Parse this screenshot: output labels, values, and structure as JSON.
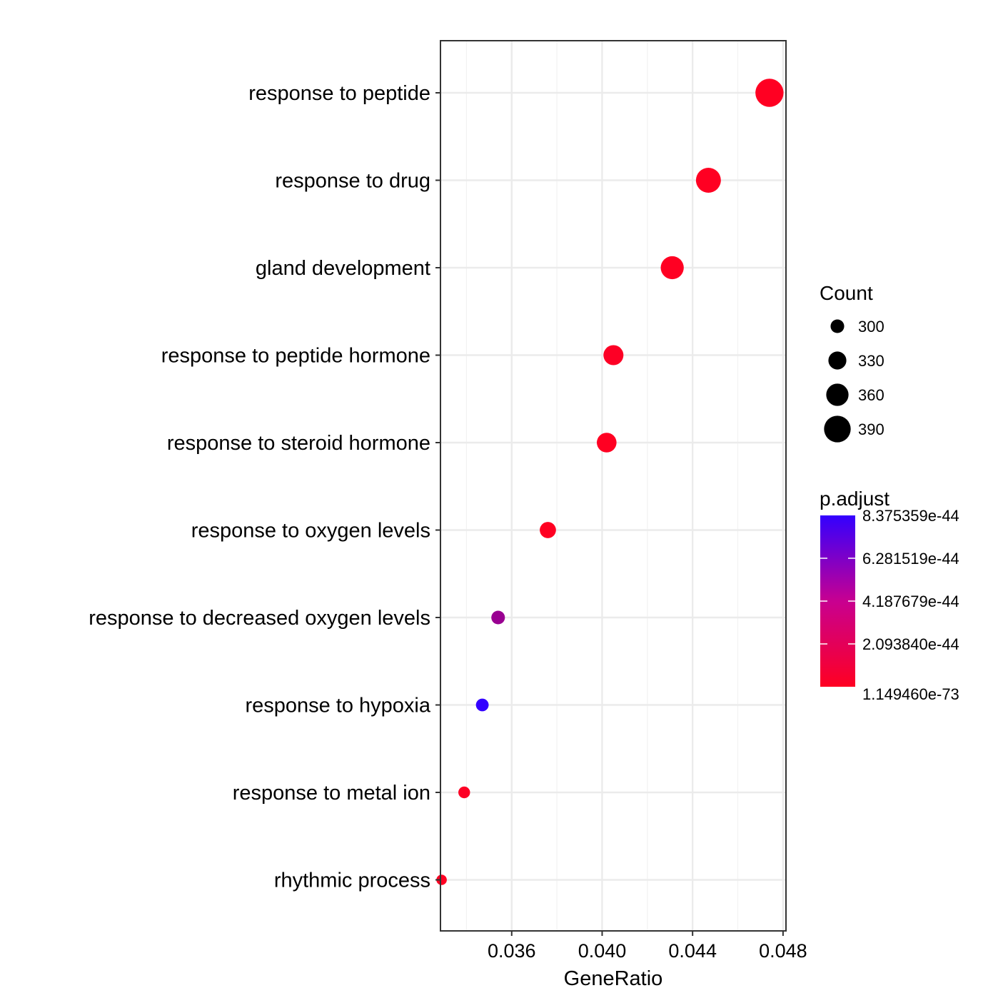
{
  "chart_data": {
    "type": "scatter",
    "xlabel": "GeneRatio",
    "ylabel": "",
    "xlim": [
      0.03285,
      0.04813
    ],
    "x_ticks": [
      0.036,
      0.04,
      0.044,
      0.048
    ],
    "x_tick_labels": [
      "0.036",
      "0.040",
      "0.044",
      "0.048"
    ],
    "categories": [
      "response to peptide",
      "response to drug",
      "gland development",
      "response to peptide hormone",
      "response to steroid hormone",
      "response to oxygen levels",
      "response to decreased oxygen levels",
      "response to hypoxia",
      "response to metal ion",
      "rhythmic process"
    ],
    "points": [
      {
        "term": "response to peptide",
        "gene_ratio": 0.0474,
        "count": 400,
        "p_adjust": 1e-72
      },
      {
        "term": "response to drug",
        "gene_ratio": 0.0447,
        "count": 378,
        "p_adjust": 5e-60
      },
      {
        "term": "gland development",
        "gene_ratio": 0.0431,
        "count": 365,
        "p_adjust": 1e-55
      },
      {
        "term": "response to peptide hormone",
        "gene_ratio": 0.0405,
        "count": 344,
        "p_adjust": 1e-45
      },
      {
        "term": "response to steroid hormone",
        "gene_ratio": 0.0402,
        "count": 342,
        "p_adjust": 5e-50
      },
      {
        "term": "response to oxygen levels",
        "gene_ratio": 0.0376,
        "count": 318,
        "p_adjust": 1e-50
      },
      {
        "term": "response to decreased oxygen levels",
        "gene_ratio": 0.0354,
        "count": 300,
        "p_adjust": 4.2e-44
      },
      {
        "term": "response to hypoxia",
        "gene_ratio": 0.0347,
        "count": 294,
        "p_adjust": 8.375359e-44
      },
      {
        "term": "response to metal ion",
        "gene_ratio": 0.0339,
        "count": 287,
        "p_adjust": 1e-45
      },
      {
        "term": "rhythmic process",
        "gene_ratio": 0.0329,
        "count": 278,
        "p_adjust": 1e-46
      }
    ],
    "grid": true,
    "size_legend": {
      "title": "Count",
      "breaks": [
        300,
        330,
        360,
        390
      ],
      "labels": [
        "300",
        "330",
        "360",
        "390"
      ]
    },
    "color_legend": {
      "title": "p.adjust",
      "labels": [
        "8.375359e-44",
        "6.281519e-44",
        "4.187679e-44",
        "2.093840e-44",
        "1.149460e-73"
      ],
      "low_color": "#ff0000",
      "high_color": "#0000ff",
      "range": [
        1.14946e-73,
        8.375359e-44
      ]
    },
    "legend_position": "right"
  }
}
